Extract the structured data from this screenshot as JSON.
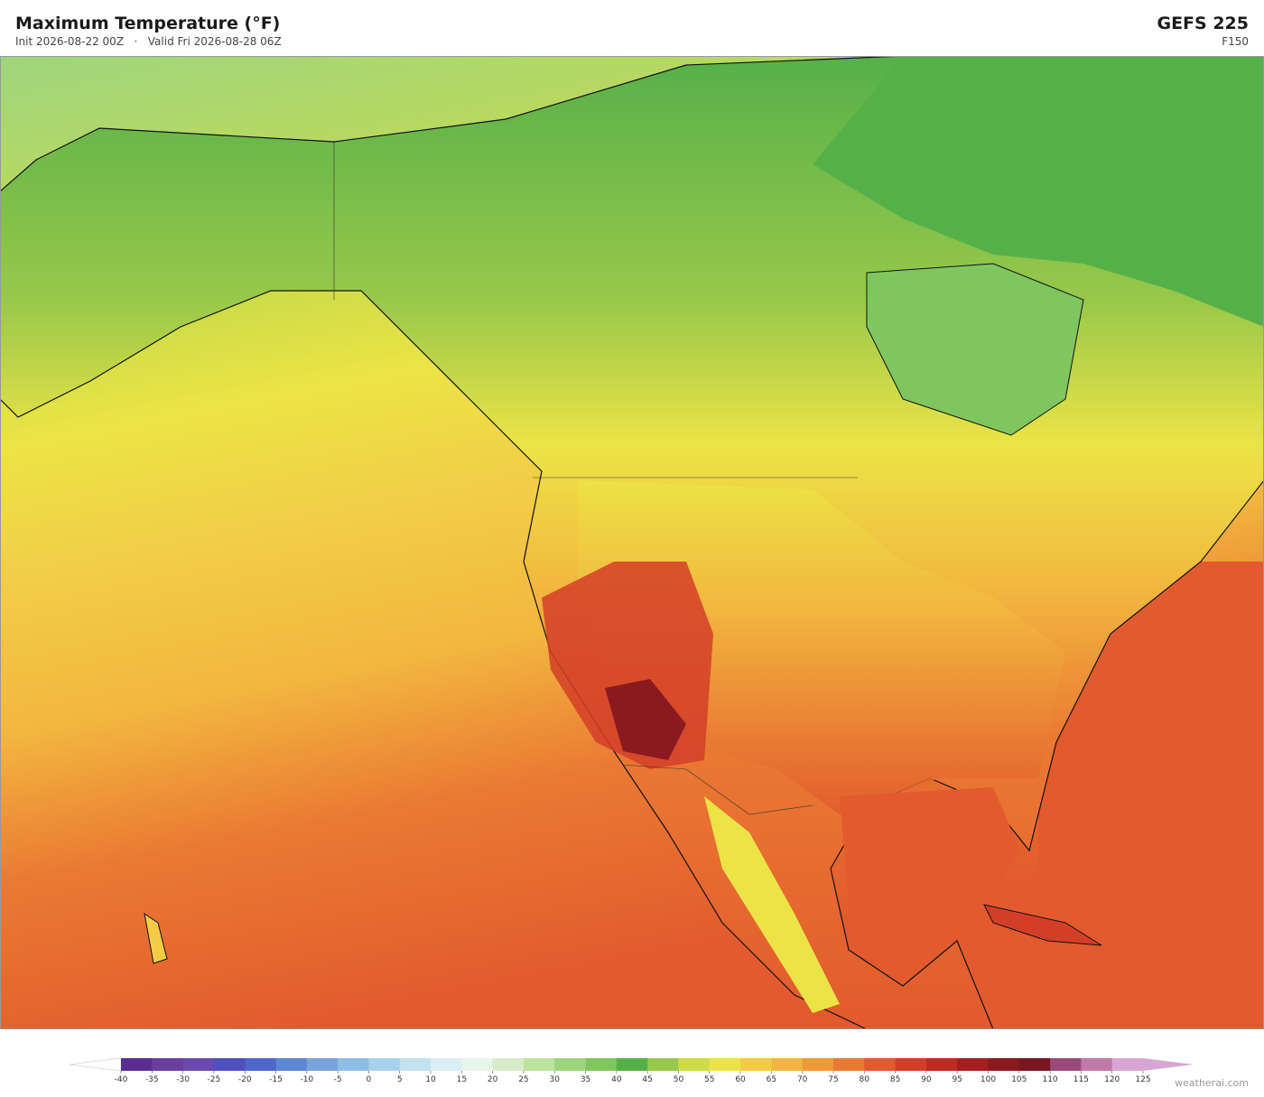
{
  "header": {
    "title": "Maximum Temperature  (°F)",
    "init": "Init 2026-08-22 00Z",
    "separator": "·",
    "valid": "Valid Fri 2026-08-28 06Z",
    "model": "GEFS  225",
    "forecast_hour": "F150"
  },
  "colorbar": {
    "ticks": [
      -40,
      -35,
      -30,
      -25,
      -20,
      -15,
      -10,
      -5,
      0,
      5,
      10,
      15,
      20,
      25,
      30,
      35,
      40,
      45,
      50,
      55,
      60,
      65,
      70,
      75,
      80,
      85,
      90,
      95,
      100,
      105,
      110,
      115,
      120,
      125
    ],
    "colors": [
      "#5b2d91",
      "#6a3fa0",
      "#6b4ab0",
      "#4f4fc0",
      "#4f66cc",
      "#5f86d3",
      "#7aa3db",
      "#90bde4",
      "#a8d2ec",
      "#c2e2f0",
      "#dbeef3",
      "#e8f5ea",
      "#d6ecc8",
      "#bde3a0",
      "#9fd57e",
      "#7fc65f",
      "#56b04a",
      "#98c84a",
      "#cddc48",
      "#ece446",
      "#f2cc47",
      "#f2b63f",
      "#ef9a38",
      "#ea7a33",
      "#e25a2d",
      "#d43e28",
      "#bf2a25",
      "#a51f22",
      "#8b1a1f",
      "#7a1720",
      "#9a4a78",
      "#c07aaa",
      "#d8a6d4"
    ],
    "under_color": "#ffffff",
    "over_color": "#d8a6d4"
  },
  "credit": "weatherai.com"
}
